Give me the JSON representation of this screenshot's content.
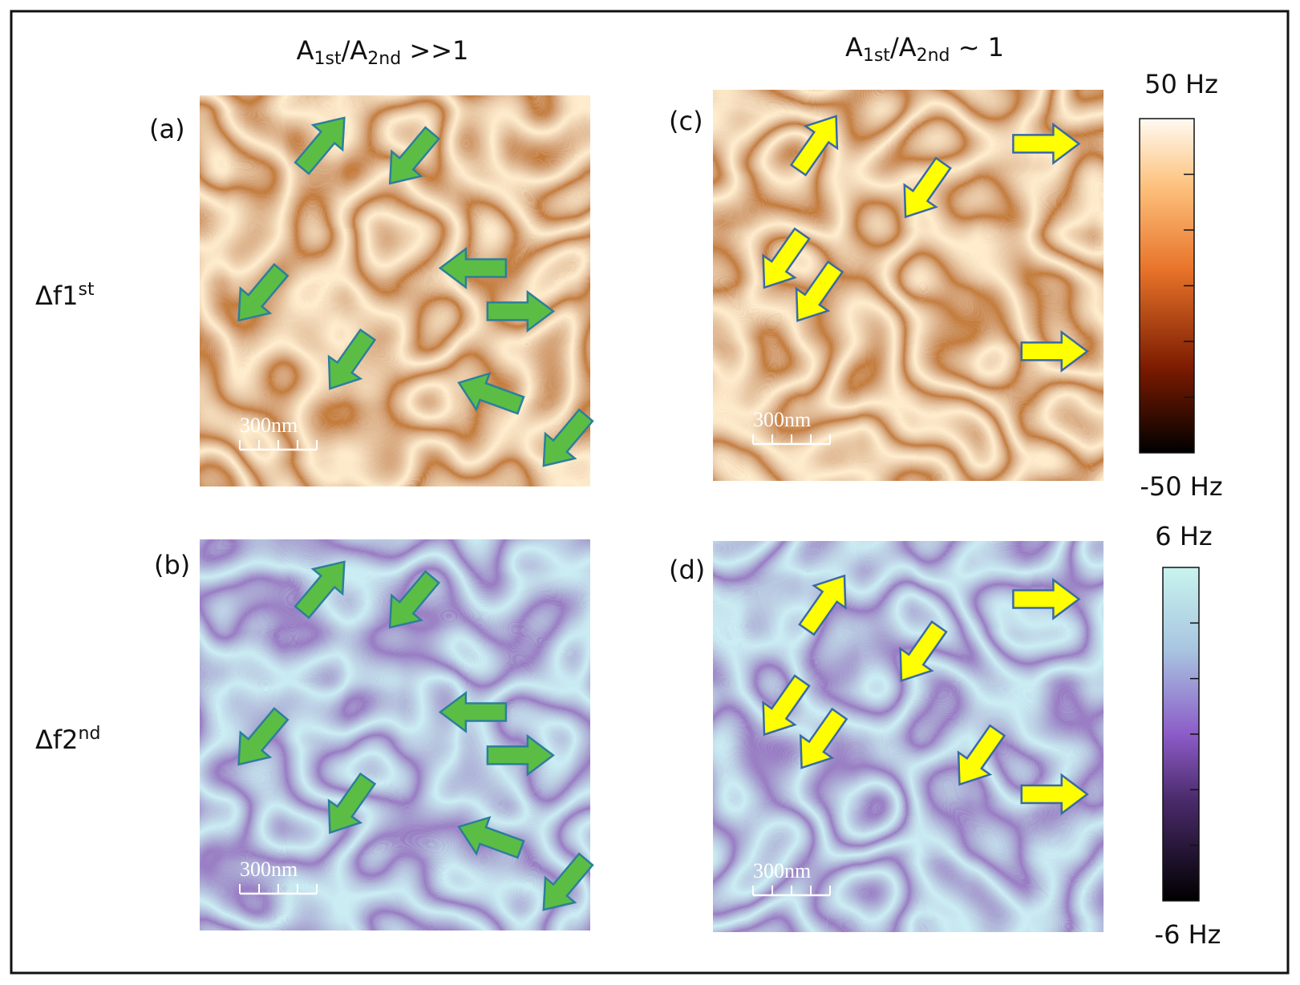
{
  "columns": [
    {
      "parts": [
        "A",
        "1st",
        "/A",
        "2nd",
        " >>1"
      ]
    },
    {
      "parts": [
        "A",
        "1st",
        "/A",
        "2nd",
        " ~ 1"
      ]
    }
  ],
  "rows": [
    {
      "parts": [
        "Δf1",
        "st"
      ]
    },
    {
      "parts": [
        "Δf2",
        "nd"
      ]
    }
  ],
  "panels": [
    {
      "label": "(a)",
      "scale_bar": "300nm"
    },
    {
      "label": "(b)",
      "scale_bar": "300nm"
    },
    {
      "label": "(c)",
      "scale_bar": "300nm"
    },
    {
      "label": "(d)",
      "scale_bar": "300nm"
    }
  ],
  "colorbars": [
    {
      "max": "50 Hz",
      "min": "-50 Hz"
    },
    {
      "max": "6 Hz",
      "min": "-6 Hz"
    }
  ]
}
